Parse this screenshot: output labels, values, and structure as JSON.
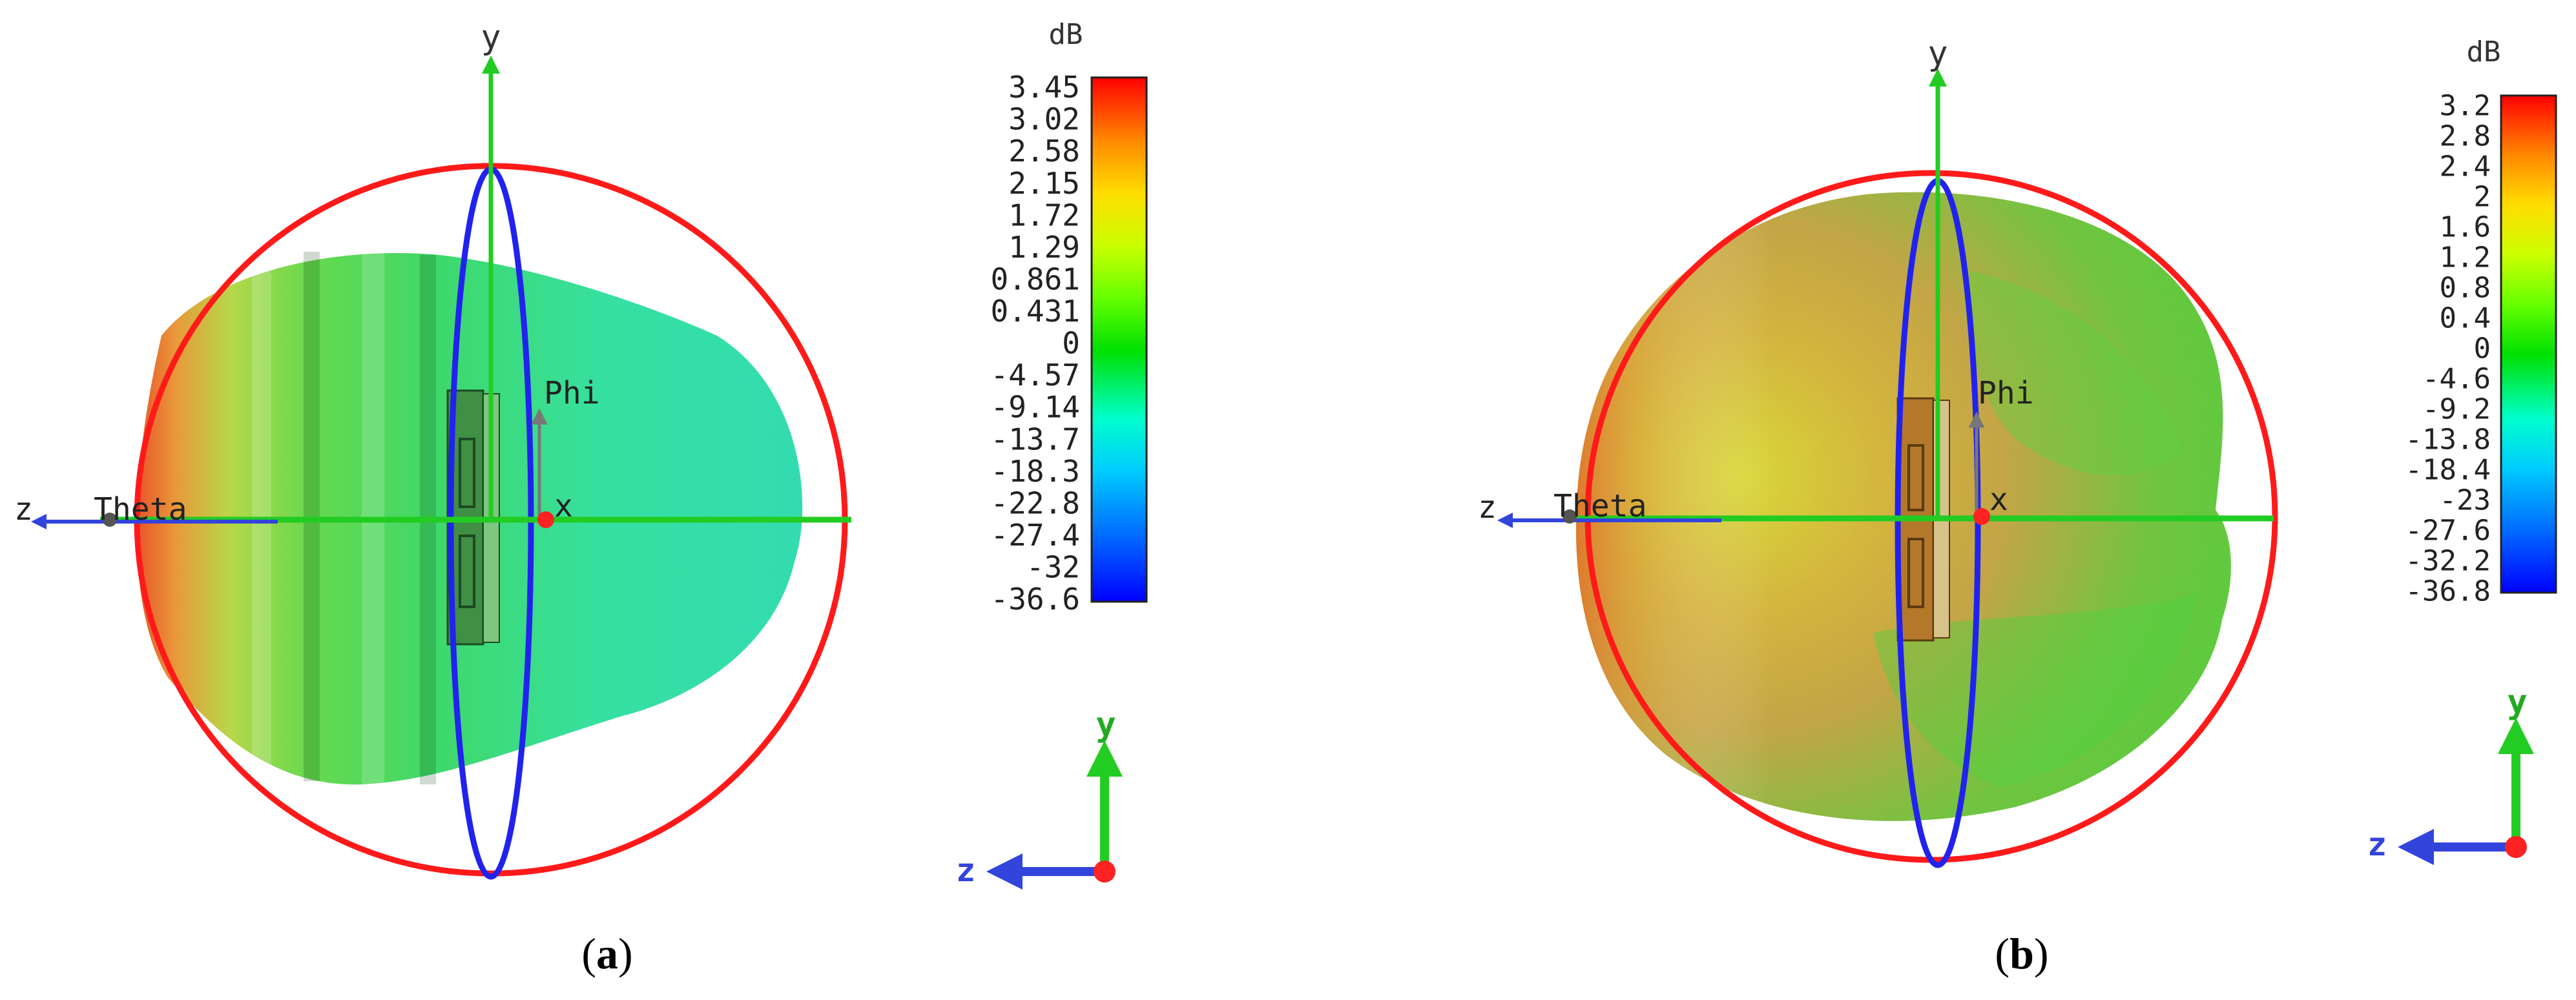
{
  "panels": [
    {
      "caption_open": "(",
      "caption_letter": "a",
      "caption_close": ")",
      "axis_labels": {
        "y": "y",
        "x": "x",
        "z": "z",
        "theta": "Theta",
        "phi": "Phi"
      },
      "colorbar": {
        "unit": "dB",
        "ticks": [
          "3.45",
          "3.02",
          "2.58",
          "2.15",
          "1.72",
          "1.29",
          "0.861",
          "0.431",
          "0",
          "-4.57",
          "-9.14",
          "-13.7",
          "-18.3",
          "-22.8",
          "-27.4",
          "-32",
          "-36.6"
        ]
      },
      "triad": {
        "y": "y",
        "z": "z"
      }
    },
    {
      "caption_open": "(",
      "caption_letter": "b",
      "caption_close": ")",
      "axis_labels": {
        "y": "y",
        "x": "x",
        "z": "z",
        "theta": "Theta",
        "phi": "Phi"
      },
      "colorbar": {
        "unit": "dB",
        "ticks": [
          "3.2",
          "2.8",
          "2.4",
          "2",
          "1.6",
          "1.2",
          "0.8",
          "0.4",
          "0",
          "-4.6",
          "-9.2",
          "-13.8",
          "-18.4",
          "-23",
          "-27.6",
          "-32.2",
          "-36.8"
        ]
      },
      "triad": {
        "y": "y",
        "z": "z"
      }
    }
  ],
  "colors": {
    "ring": "#ff1a1a",
    "phi_ellipse": "#2222ee",
    "axis_green": "#22cc22",
    "axis_blue": "#3344dd",
    "origin_dot": "#ff2222"
  }
}
